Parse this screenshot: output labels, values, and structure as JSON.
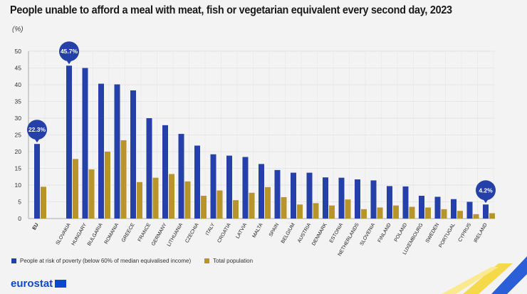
{
  "chart_data": {
    "type": "bar",
    "title": "People unable to afford a meal with meat, fish or vegetarian equivalent every second day, 2023",
    "ylabel": "(%)",
    "ylim": [
      0,
      50
    ],
    "yticks": [
      0,
      5,
      10,
      15,
      20,
      25,
      30,
      35,
      40,
      45,
      50
    ],
    "grid": true,
    "legend_position": "bottom-left",
    "categories": [
      "EU",
      "SLOVAKIA",
      "HUNGARY",
      "BULGARIA",
      "ROMANIA",
      "GREECE",
      "FRANCE",
      "GERMANY",
      "LITHUANIA",
      "CZECHIA",
      "ITALY",
      "CROATIA",
      "LATVIA",
      "MALTA",
      "SPAIN",
      "BELGIUM",
      "AUSTRIA",
      "DENMARK",
      "ESTONIA",
      "NETHERLANDS",
      "SLOVENIA",
      "FINLAND",
      "POLAND",
      "LUXEMBOURG",
      "SWEDEN",
      "PORTUGAL",
      "CYPRUS",
      "IRELAND"
    ],
    "series": [
      {
        "name": "People at risk of poverty (below 60% of median equivalised income)",
        "color": "#2540a8",
        "values": [
          22.3,
          45.7,
          45.0,
          40.3,
          40.1,
          38.3,
          30.0,
          27.9,
          25.3,
          21.8,
          19.2,
          18.8,
          18.4,
          16.3,
          14.5,
          13.7,
          13.7,
          12.3,
          12.2,
          11.7,
          11.4,
          9.7,
          9.6,
          6.8,
          6.5,
          5.8,
          5.0,
          4.2
        ]
      },
      {
        "name": "Total population",
        "color": "#b8952a",
        "values": [
          9.5,
          17.8,
          14.7,
          20.0,
          23.4,
          10.9,
          12.2,
          13.3,
          11.1,
          6.8,
          8.4,
          5.5,
          7.7,
          9.4,
          6.4,
          4.2,
          4.6,
          3.9,
          5.7,
          2.8,
          3.3,
          3.9,
          3.5,
          3.3,
          2.8,
          2.3,
          1.3,
          1.6
        ]
      }
    ],
    "annotations": [
      {
        "category": "EU",
        "label": "22.3%"
      },
      {
        "category": "SLOVAKIA",
        "label": "45.7%"
      },
      {
        "category": "IRELAND",
        "label": "4.2%"
      }
    ]
  },
  "branding": {
    "logo": "eurostat"
  }
}
